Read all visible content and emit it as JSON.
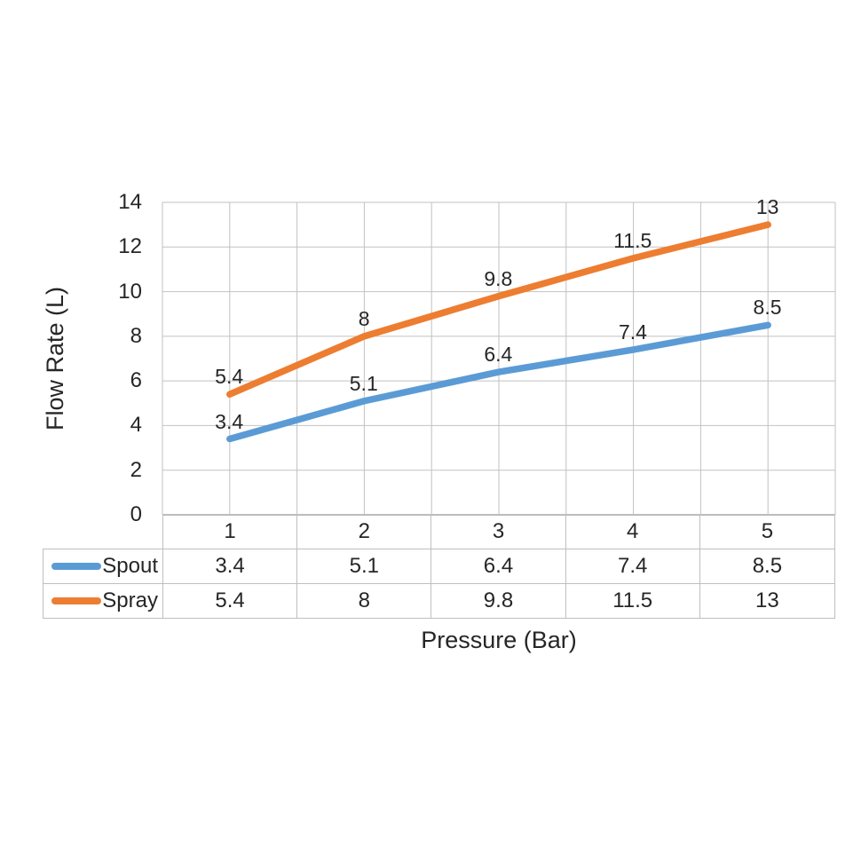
{
  "chart_data": {
    "type": "line",
    "title": "",
    "xlabel": "Pressure (Bar)",
    "ylabel": "Flow Rate (L)",
    "categories": [
      "1",
      "2",
      "3",
      "4",
      "5"
    ],
    "series": [
      {
        "name": "Spout",
        "color": "#5B9BD5",
        "values": [
          3.4,
          5.1,
          6.4,
          7.4,
          8.5
        ]
      },
      {
        "name": "Spray",
        "color": "#ED7D31",
        "values": [
          5.4,
          8,
          9.8,
          11.5,
          13
        ]
      }
    ],
    "ylim": [
      0,
      14
    ],
    "yticks": [
      0,
      2,
      4,
      6,
      8,
      10,
      12,
      14
    ],
    "grid": true,
    "data_labels": true,
    "legend_position": "data-table",
    "data_table": true
  },
  "colors": {
    "background": "#FFFFFF",
    "gridline": "#C2C2C2",
    "axis_line": "#A6A6A6",
    "table_border": "#BFBFBF",
    "text": "#262626",
    "series_spout": "#5B9BD5",
    "series_spray": "#ED7D31"
  }
}
